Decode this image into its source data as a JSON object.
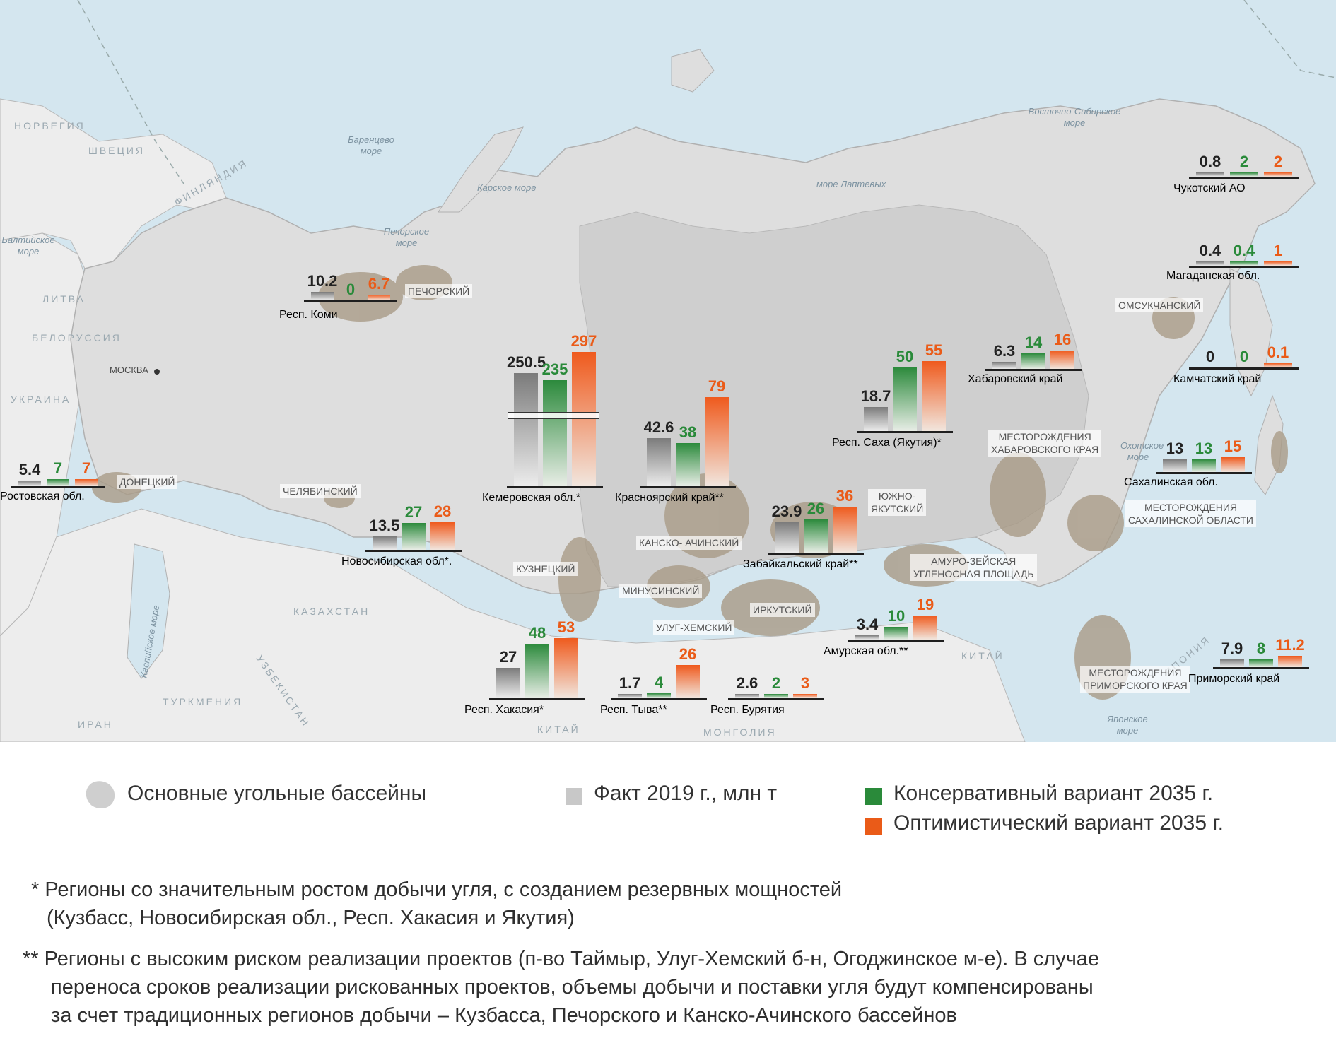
{
  "countries": [
    "НОРВЕГИЯ",
    "ШВЕЦИЯ",
    "ФИНЛЯНДИЯ",
    "ЛИТВА",
    "БЕЛОРУССИЯ",
    "УКРАИНА",
    "КАЗАХСТАН",
    "УЗБЕКИСТАН",
    "ТУРКМЕНИЯ",
    "ИРАН",
    "КИТАЙ",
    "МОНГОЛИЯ",
    "КИТАЙ",
    "ЯПОНИЯ"
  ],
  "seas": [
    "Баренцево море",
    "Карское море",
    "Печорское море",
    "Балтийское море",
    "море Лаптевых",
    "Восточно-Сибирское море",
    "Охотское море",
    "Японское море",
    "Каспийское море"
  ],
  "city": "МОСКВА",
  "basins": [
    "ПЕЧОРСКИЙ",
    "ДОНЕЦКИЙ",
    "ЧЕЛЯБИНСКИЙ",
    "КУЗНЕЦКИЙ",
    "КАНСКО- АЧИНСКИЙ",
    "МИНУСИНСКИЙ",
    "УЛУГ-ХЕМСКИЙ",
    "ИРКУТСКИЙ",
    "ЮЖНО-\nЯКУТСКИЙ",
    "АМУРО-ЗЕЙСКАЯ\nУГЛЕНОСНАЯ ПЛОЩАДЬ",
    "МЕСТОРОЖДЕНИЯ\nХАБАРОВСКОГО КРАЯ",
    "ОМСУКЧАНСКИЙ",
    "МЕСТОРОЖДЕНИЯ\nСАХАЛИНСКОЙ ОБЛАСТИ",
    "МЕСТОРОЖДЕНИЯ\nПРИМОРСКОГО КРАЯ"
  ],
  "chart_data": {
    "type": "bar",
    "title": "",
    "units": "млн т",
    "series_labels": [
      "Факт 2019 г., млн т",
      "Консервативный вариант 2035 г.",
      "Оптимистический вариант 2035 г."
    ],
    "colors": {
      "fact": "#8c8c8c",
      "cons": "#2a8a3a",
      "opt": "#ea5b18"
    },
    "regions": [
      {
        "name": "Респ. Коми",
        "fact": "10.2",
        "cons": "0",
        "opt": "6.7"
      },
      {
        "name": "Ростовская обл.",
        "fact": "5.4",
        "cons": "7",
        "opt": "7"
      },
      {
        "name": "Новосибирская обл*.",
        "fact": "13.5",
        "cons": "27",
        "opt": "28"
      },
      {
        "name": "Кемеровская обл.*",
        "fact": "250.5",
        "cons": "235",
        "opt": "297"
      },
      {
        "name": "Красноярский край**",
        "fact": "42.6",
        "cons": "38",
        "opt": "79"
      },
      {
        "name": "Респ. Хакасия*",
        "fact": "27",
        "cons": "48",
        "opt": "53"
      },
      {
        "name": "Респ. Тыва**",
        "fact": "1.7",
        "cons": "4",
        "opt": "26"
      },
      {
        "name": "Респ. Бурятия",
        "fact": "2.6",
        "cons": "2",
        "opt": "3"
      },
      {
        "name": "Забайкальский край**",
        "fact": "23.9",
        "cons": "26",
        "opt": "36"
      },
      {
        "name": "Амурская обл.**",
        "fact": "3.4",
        "cons": "10",
        "opt": "19"
      },
      {
        "name": "Респ. Саха (Якутия)*",
        "fact": "18.7",
        "cons": "50",
        "opt": "55"
      },
      {
        "name": "Хабаровский край",
        "fact": "6.3",
        "cons": "14",
        "opt": "16"
      },
      {
        "name": "Чукотский АО",
        "fact": "0.8",
        "cons": "2",
        "opt": "2"
      },
      {
        "name": "Магаданская обл.",
        "fact": "0.4",
        "cons": "0.4",
        "opt": "1"
      },
      {
        "name": "Камчатский край",
        "fact": "0",
        "cons": "0",
        "opt": "0.1"
      },
      {
        "name": "Сахалинская обл.",
        "fact": "13",
        "cons": "13",
        "opt": "15"
      },
      {
        "name": "Приморский край",
        "fact": "7.9",
        "cons": "8",
        "opt": "11.2"
      }
    ]
  },
  "legend": {
    "basins_label": "Основные угольные бассейны",
    "fact_label": "Факт 2019 г., млн т",
    "cons_label": "Консервативный вариант 2035 г.",
    "opt_label": "Оптимистический вариант 2035 г."
  },
  "notes": {
    "note1_line1": "* Регионы со значительным ростом добычи угля, с созданием резервных мощностей",
    "note1_line2": "(Кузбасс, Новосибирская обл., Респ. Хакасия и Якутия)",
    "note2_line1": "** Регионы с высоким риском реализации проектов (п-во Таймыр, Улуг-Хемский б-н, Огоджинское м-е). В случае",
    "note2_line2": "переноса сроков реализации рискованных проектов, объемы добычи и поставки угля будут компенсированы",
    "note2_line3": "за счет традиционных регионов добычи – Кузбасса, Печорского и Канско-Ачинского бассейнов"
  }
}
